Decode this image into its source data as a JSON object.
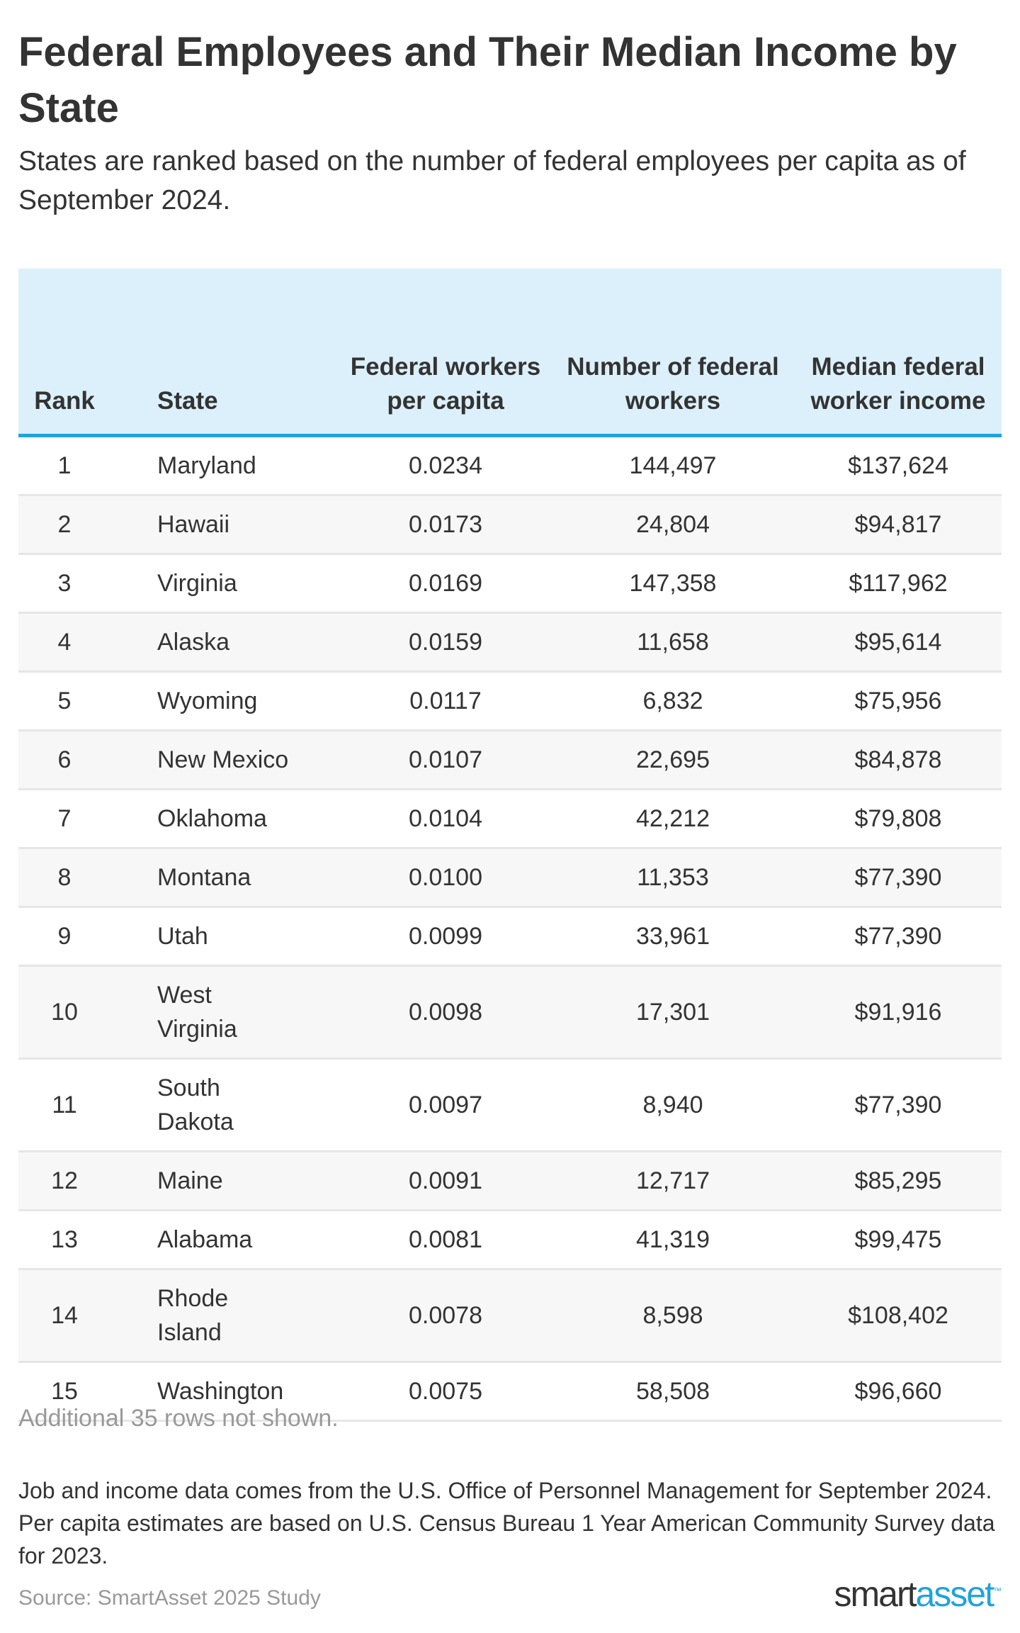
{
  "title": "Federal Employees and Their Median Income by State",
  "subtitle": "States are ranked based on the number of federal employees per capita as of September 2024.",
  "colors": {
    "header_bg": "#dcf0fb",
    "header_rule": "#1fa3dc",
    "stripe": "#f7f7f7",
    "brand": "#1fa3dc"
  },
  "chart_data": {
    "type": "table",
    "columns": [
      "Rank",
      "State",
      "Federal workers per capita",
      "Number of federal workers",
      "Median federal worker income"
    ],
    "rows": [
      [
        "1",
        "Maryland",
        "0.0234",
        "144,497",
        "$137,624"
      ],
      [
        "2",
        "Hawaii",
        "0.0173",
        "24,804",
        "$94,817"
      ],
      [
        "3",
        "Virginia",
        "0.0169",
        "147,358",
        "$117,962"
      ],
      [
        "4",
        "Alaska",
        "0.0159",
        "11,658",
        "$95,614"
      ],
      [
        "5",
        "Wyoming",
        "0.0117",
        "6,832",
        "$75,956"
      ],
      [
        "6",
        "New Mexico",
        "0.0107",
        "22,695",
        "$84,878"
      ],
      [
        "7",
        "Oklahoma",
        "0.0104",
        "42,212",
        "$79,808"
      ],
      [
        "8",
        "Montana",
        "0.0100",
        "11,353",
        "$77,390"
      ],
      [
        "9",
        "Utah",
        "0.0099",
        "33,961",
        "$77,390"
      ],
      [
        "10",
        "West Virginia",
        "0.0098",
        "17,301",
        "$91,916"
      ],
      [
        "11",
        "South Dakota",
        "0.0097",
        "8,940",
        "$77,390"
      ],
      [
        "12",
        "Maine",
        "0.0091",
        "12,717",
        "$85,295"
      ],
      [
        "13",
        "Alabama",
        "0.0081",
        "41,319",
        "$99,475"
      ],
      [
        "14",
        "Rhode Island",
        "0.0078",
        "8,598",
        "$108,402"
      ],
      [
        "15",
        "Washington",
        "0.0075",
        "58,508",
        "$96,660"
      ]
    ]
  },
  "more_rows_note": "Additional 35 rows not shown.",
  "footnote": "Job and income data comes from the U.S. Office of Personnel Management for September 2024. Per capita estimates are based on U.S. Census Bureau 1 Year American Community Survey data for 2023.",
  "source": "Source: SmartAsset 2025 Study",
  "logo": {
    "part1": "smart",
    "part2": "asset",
    "tm": "™"
  }
}
